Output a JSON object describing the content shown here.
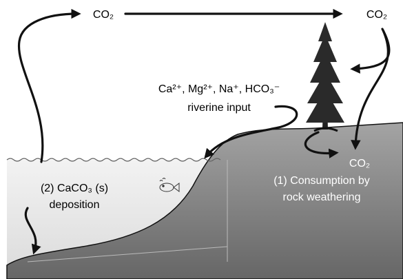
{
  "labels": {
    "co2_top_left": "CO₂",
    "co2_top_right": "CO₂",
    "ions": "Ca²⁺, Mg²⁺, Na⁺, HCO₃⁻",
    "riverine": "riverine input",
    "co2_soil": "CO₂",
    "consumption": [
      "(1) Consumption by",
      "rock weathering"
    ],
    "deposition": [
      "(2) CaCO₃ (s)",
      "deposition"
    ]
  }
}
